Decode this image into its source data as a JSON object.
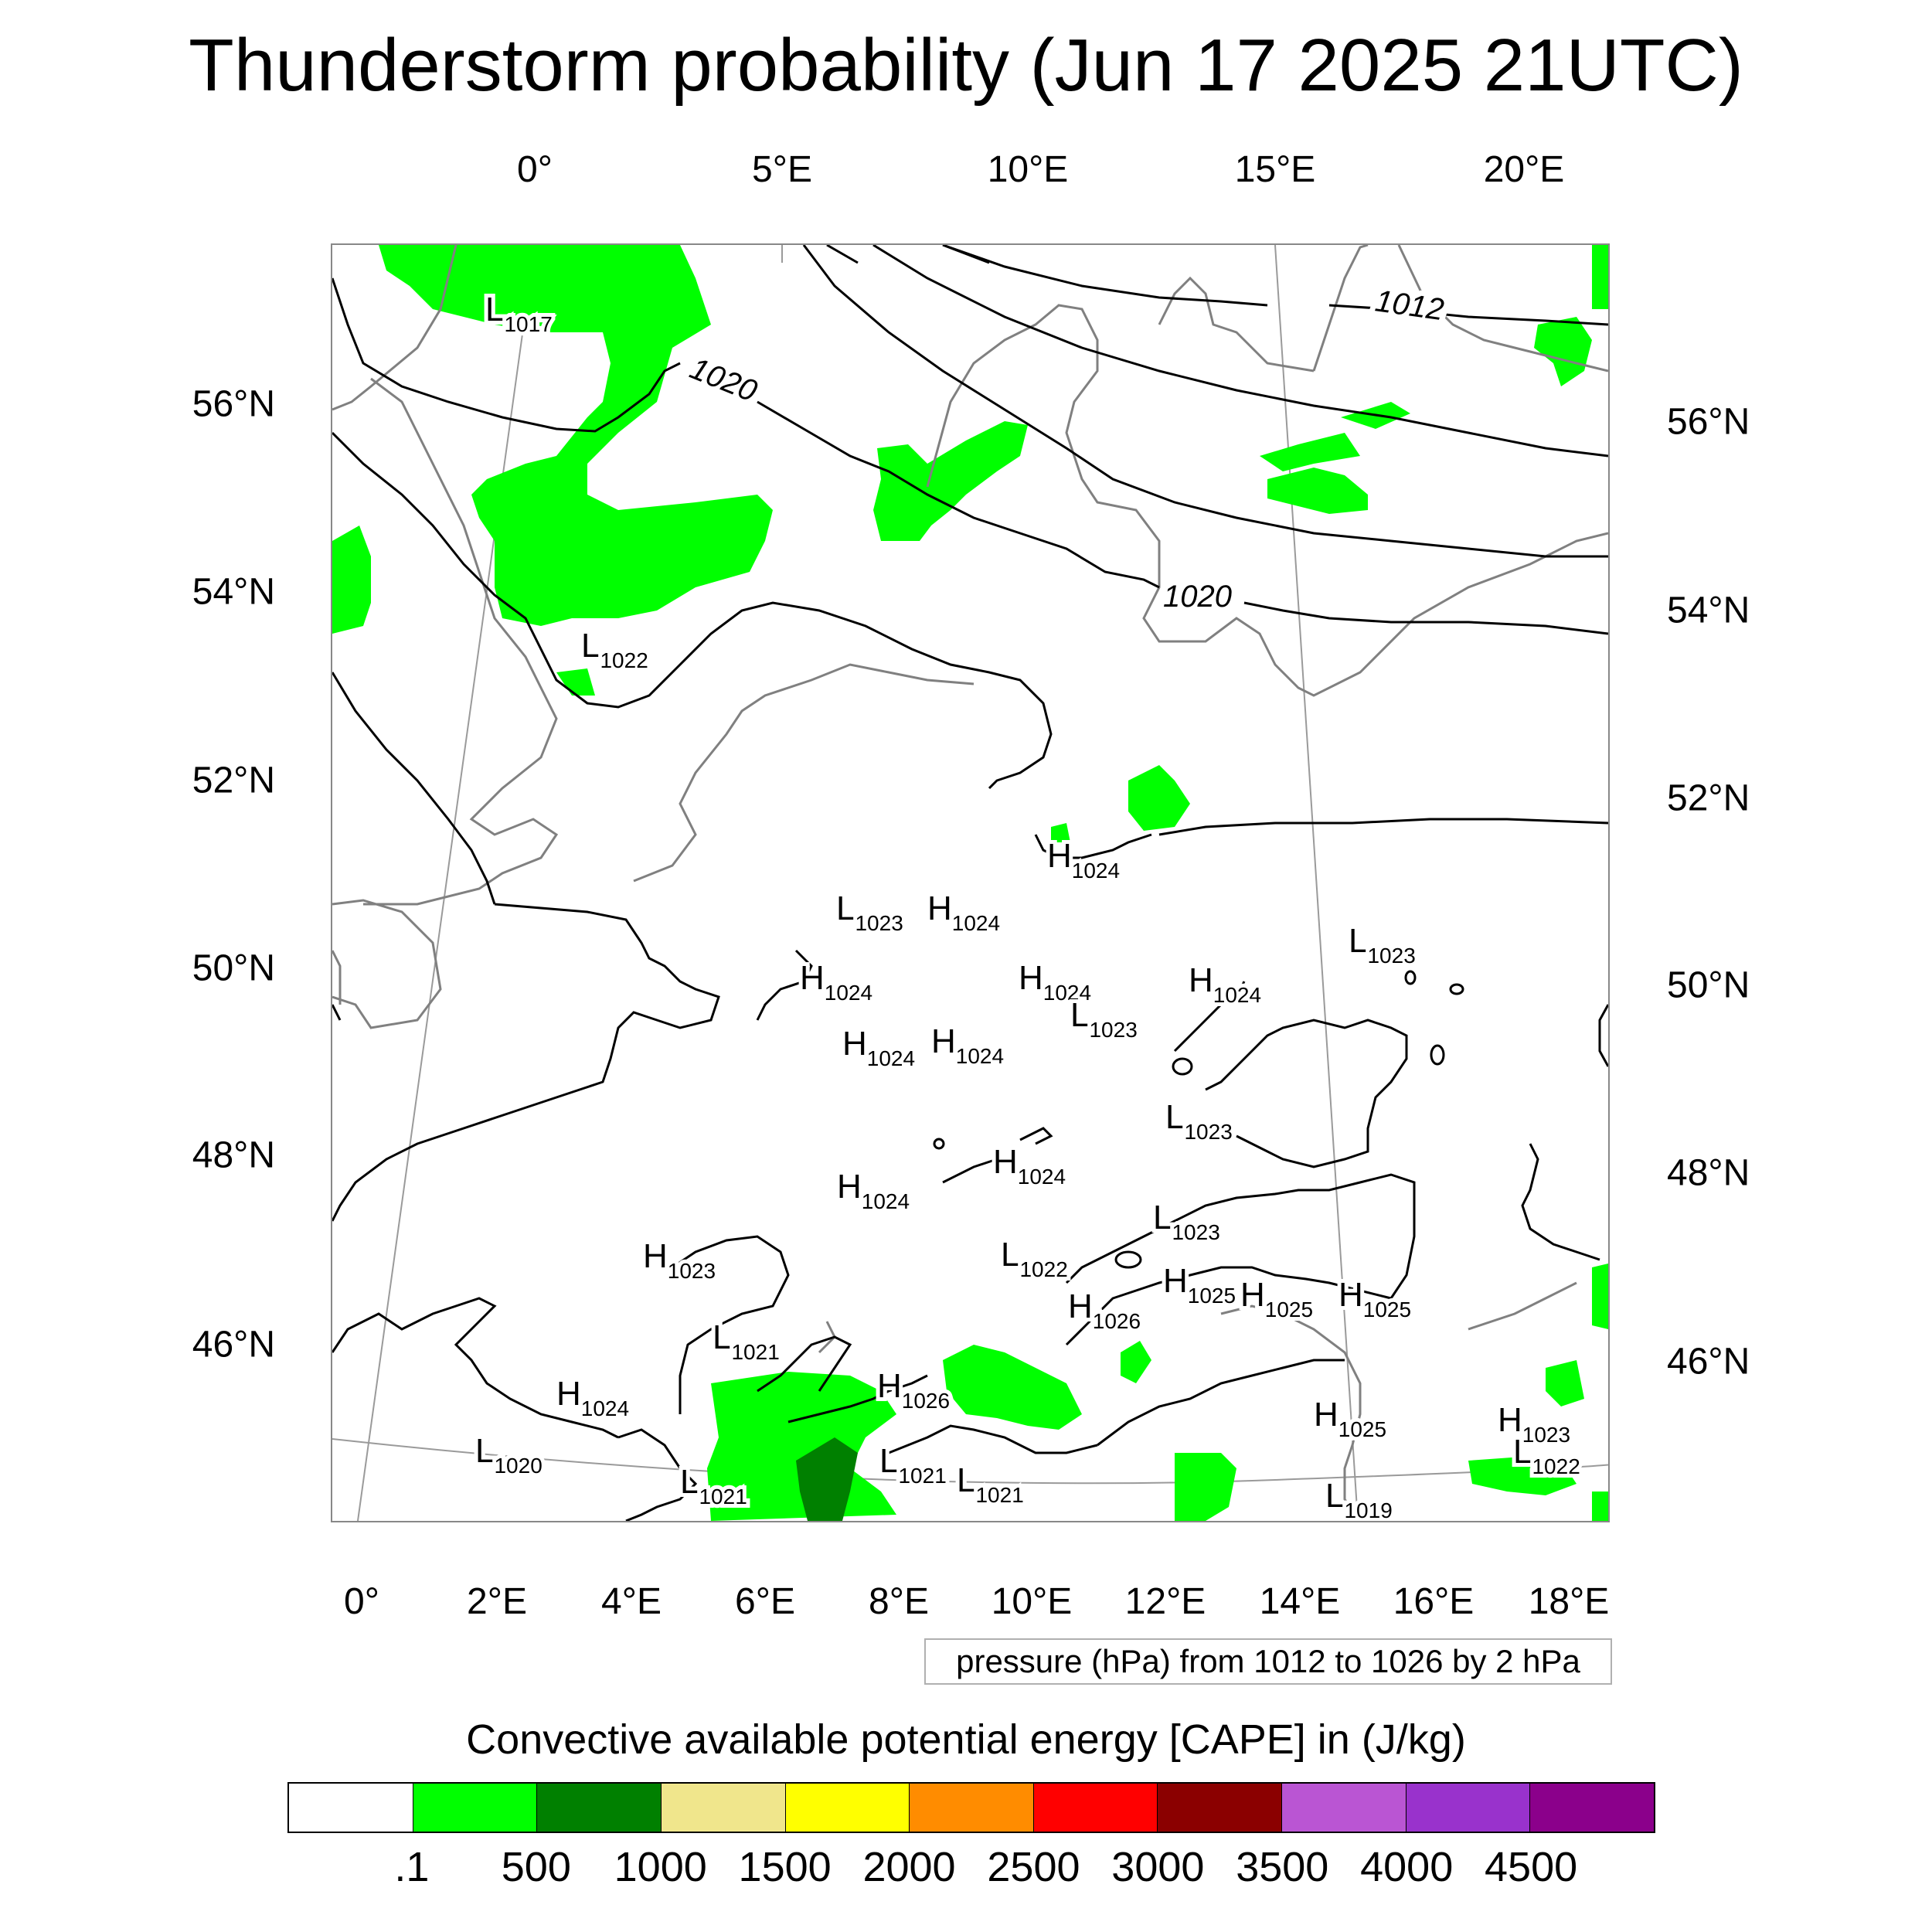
{
  "title": "Thunderstorm probability (Jun 17 2025 21UTC)",
  "top_lon_labels": [
    "0°",
    "5°E",
    "10°E",
    "15°E",
    "20°E"
  ],
  "bottom_lon_labels": [
    "0°",
    "2°E",
    "4°E",
    "6°E",
    "8°E",
    "10°E",
    "12°E",
    "14°E",
    "16°E",
    "18°E"
  ],
  "left_lat_labels": [
    "56°N",
    "54°N",
    "52°N",
    "50°N",
    "48°N",
    "46°N"
  ],
  "right_lat_labels": [
    "56°N",
    "54°N",
    "52°N",
    "50°N",
    "48°N",
    "46°N"
  ],
  "pressure_note": "pressure (hPa) from 1012 to 1026 by 2 hPa",
  "isobar_labels": [
    "1012",
    "1020",
    "1020"
  ],
  "centers": [
    {
      "letter": "L",
      "value": "1017"
    },
    {
      "letter": "L",
      "value": "1022"
    },
    {
      "letter": "H",
      "value": "1024"
    },
    {
      "letter": "L",
      "value": "1023"
    },
    {
      "letter": "H",
      "value": "1024"
    },
    {
      "letter": "H",
      "value": "1024"
    },
    {
      "letter": "H",
      "value": "1024"
    },
    {
      "letter": "H",
      "value": "1024"
    },
    {
      "letter": "L",
      "value": "1023"
    },
    {
      "letter": "H",
      "value": "1024"
    },
    {
      "letter": "H",
      "value": "1024"
    },
    {
      "letter": "L",
      "value": "1023"
    },
    {
      "letter": "L",
      "value": "1023"
    },
    {
      "letter": "H",
      "value": "1024"
    },
    {
      "letter": "H",
      "value": "1024"
    },
    {
      "letter": "L",
      "value": "1023"
    },
    {
      "letter": "L",
      "value": "1022"
    },
    {
      "letter": "H",
      "value": "1023"
    },
    {
      "letter": "H",
      "value": "1025"
    },
    {
      "letter": "H",
      "value": "1025"
    },
    {
      "letter": "H",
      "value": "1025"
    },
    {
      "letter": "H",
      "value": "1026"
    },
    {
      "letter": "L",
      "value": "1021"
    },
    {
      "letter": "H",
      "value": "1024"
    },
    {
      "letter": "H",
      "value": "1026"
    },
    {
      "letter": "L",
      "value": "1020"
    },
    {
      "letter": "L",
      "value": "1021"
    },
    {
      "letter": "L",
      "value": "1021"
    },
    {
      "letter": "L",
      "value": "1021"
    },
    {
      "letter": "H",
      "value": "1025"
    },
    {
      "letter": "H",
      "value": "1023"
    },
    {
      "letter": "L",
      "value": "1022"
    },
    {
      "letter": "L",
      "value": "1019"
    }
  ],
  "colorbar": {
    "title": "Convective available potential energy [CAPE] in (J/kg)",
    "colors": [
      "#ffffff",
      "#00ff00",
      "#008000",
      "#f0e68c",
      "#ffff00",
      "#ff8c00",
      "#ff0000",
      "#8b0000",
      "#ba55d3",
      "#9932cc",
      "#8b008b"
    ],
    "ticks": [
      ".1",
      "500",
      "1000",
      "1500",
      "2000",
      "2500",
      "3000",
      "3500",
      "4000",
      "4500"
    ]
  },
  "colors": {
    "cape_low": "#00ff00",
    "cape_mid": "#008000",
    "coastline": "#808080",
    "isobar": "#000000"
  }
}
